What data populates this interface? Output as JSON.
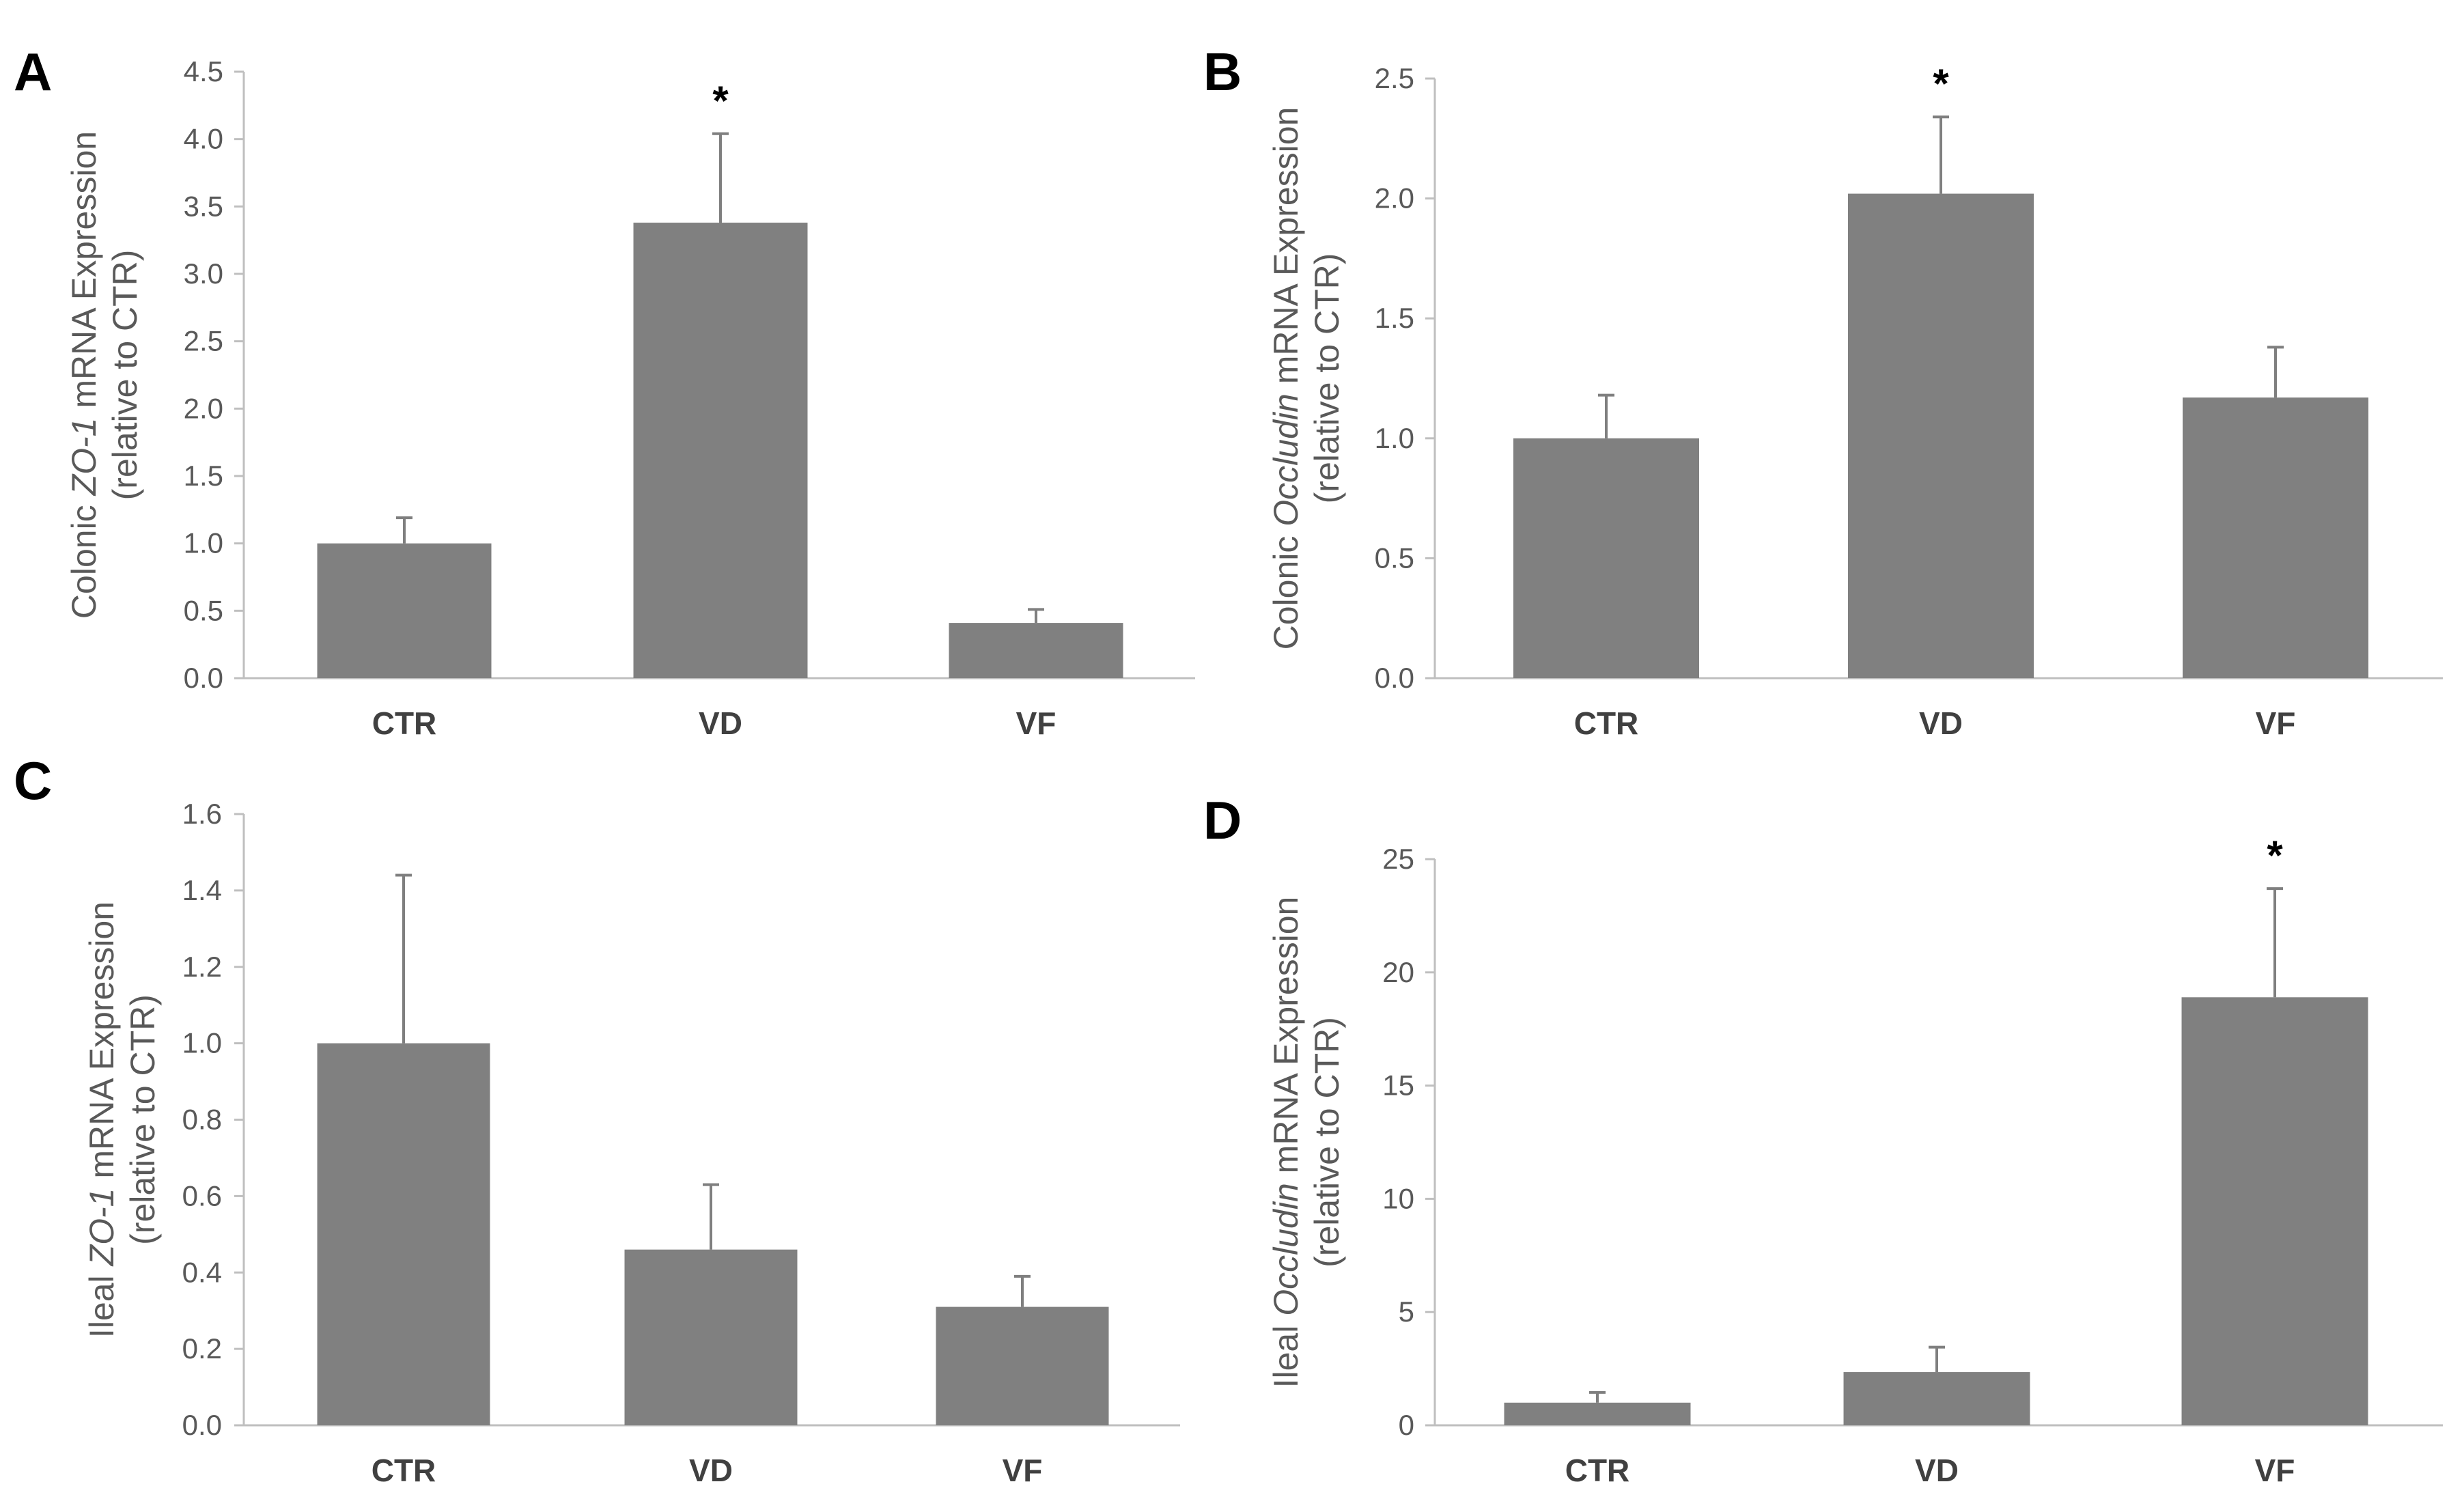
{
  "chart_data": [
    {
      "panel": "A",
      "type": "bar",
      "categories": [
        "CTR",
        "VD",
        "VF"
      ],
      "values": [
        1.0,
        3.38,
        0.41
      ],
      "errors": [
        0.19,
        0.66,
        0.1
      ],
      "significance": [
        "",
        "*",
        ""
      ],
      "ylim": [
        0,
        4.5
      ],
      "yticks": [
        "0.0",
        "0.5",
        "1.0",
        "1.5",
        "2.0",
        "2.5",
        "3.0",
        "3.5",
        "4.0",
        "4.5"
      ],
      "ylabel": {
        "line1_pre": "Colonic ",
        "line1_ital": "ZO-1",
        "line1_post": " mRNA Expression",
        "line2": "(relative to CTR)"
      },
      "bar_color": "#808080",
      "grid": false
    },
    {
      "panel": "B",
      "type": "bar",
      "categories": [
        "CTR",
        "VD",
        "VF"
      ],
      "values": [
        1.0,
        2.02,
        1.17
      ],
      "errors": [
        0.18,
        0.32,
        0.21
      ],
      "significance": [
        "",
        "*",
        ""
      ],
      "ylim": [
        0,
        2.5
      ],
      "yticks": [
        "0.0",
        "0.5",
        "1.0",
        "1.5",
        "2.0",
        "2.5"
      ],
      "ylabel": {
        "line1_pre": "Colonic ",
        "line1_ital": "Occludin",
        "line1_post": " mRNA Expression",
        "line2": "(relative to CTR)"
      },
      "bar_color": "#808080",
      "grid": false
    },
    {
      "panel": "C",
      "type": "bar",
      "categories": [
        "CTR",
        "VD",
        "VF"
      ],
      "values": [
        1.0,
        0.46,
        0.31
      ],
      "errors": [
        0.44,
        0.17,
        0.08
      ],
      "significance": [
        "",
        "",
        ""
      ],
      "ylim": [
        0,
        1.6
      ],
      "yticks": [
        "0.0",
        "0.2",
        "0.4",
        "0.6",
        "0.8",
        "1.0",
        "1.2",
        "1.4",
        "1.6"
      ],
      "ylabel": {
        "line1_pre": "Ileal ",
        "line1_ital": "ZO-1",
        "line1_post": " mRNA Expression",
        "line2": "(relative to CTR)"
      },
      "bar_color": "#808080",
      "grid": false
    },
    {
      "panel": "D",
      "type": "bar",
      "categories": [
        "CTR",
        "VD",
        "VF"
      ],
      "values": [
        1.0,
        2.35,
        18.9
      ],
      "errors": [
        0.45,
        1.1,
        4.8
      ],
      "significance": [
        "",
        "",
        "*"
      ],
      "ylim": [
        0,
        25
      ],
      "yticks": [
        "0",
        "5",
        "10",
        "15",
        "20",
        "25"
      ],
      "ylabel": {
        "line1_pre": "Ileal ",
        "line1_ital": "Occludin",
        "line1_post": " mRNA Expression",
        "line2": "(relative to CTR)"
      },
      "bar_color": "#808080",
      "grid": false
    }
  ]
}
